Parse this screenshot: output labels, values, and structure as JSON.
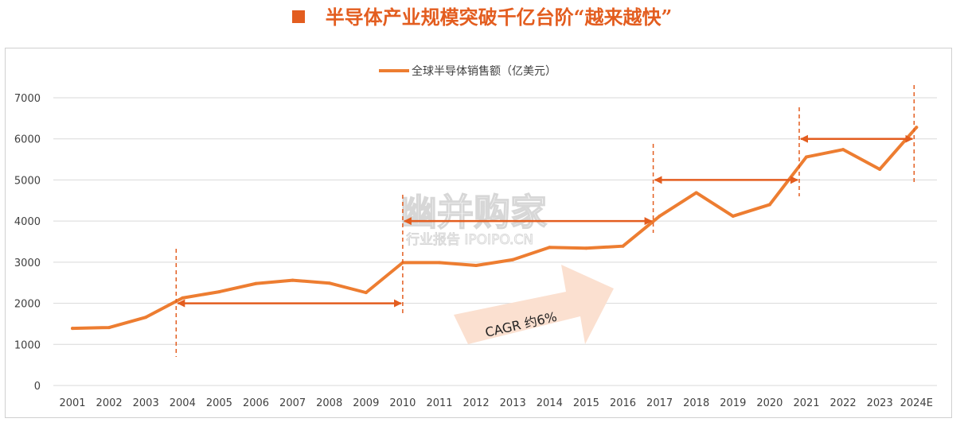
{
  "page": {
    "title": "半导体产业规模突破千亿台阶“越来越快”"
  },
  "colors": {
    "title": "#e35d1f",
    "line": "#ed7d31",
    "arrow": "#e35d1f",
    "grid": "#d9d9d9",
    "cagr_arrow_fill": "#fbe0d0"
  },
  "annotations": {
    "cagr_label": "CAGR 约6%"
  },
  "watermark": {
    "main": "幽并购家",
    "sub": "行业报告 IPOIPO.CN"
  },
  "chart_data": {
    "type": "line",
    "categories": [
      "2001",
      "2002",
      "2003",
      "2004",
      "2005",
      "2006",
      "2007",
      "2008",
      "2009",
      "2010",
      "2011",
      "2012",
      "2013",
      "2014",
      "2015",
      "2016",
      "2017",
      "2018",
      "2019",
      "2020",
      "2021",
      "2022",
      "2023",
      "2024E"
    ],
    "series": [
      {
        "name": "全球半导体销售额（亿美元）",
        "values": [
          1390,
          1410,
          1660,
          2130,
          2280,
          2480,
          2560,
          2490,
          2260,
          2990,
          2990,
          2920,
          3060,
          3360,
          3340,
          3390,
          4120,
          4690,
          4120,
          4400,
          5560,
          5740,
          5260,
          6280
        ]
      }
    ],
    "ylim": [
      0,
      7000
    ],
    "yticks": [
      0,
      1000,
      2000,
      3000,
      4000,
      5000,
      6000,
      7000
    ],
    "grid": true,
    "legend_position": "top-center",
    "milestones": [
      {
        "from": "2004",
        "to": "2010",
        "value": 2000
      },
      {
        "from": "2010",
        "to": "2017",
        "value": 4000
      },
      {
        "from": "2017",
        "to": "2021",
        "value": 5000
      },
      {
        "from": "2021",
        "to": "2024E",
        "value": 6000
      }
    ]
  }
}
